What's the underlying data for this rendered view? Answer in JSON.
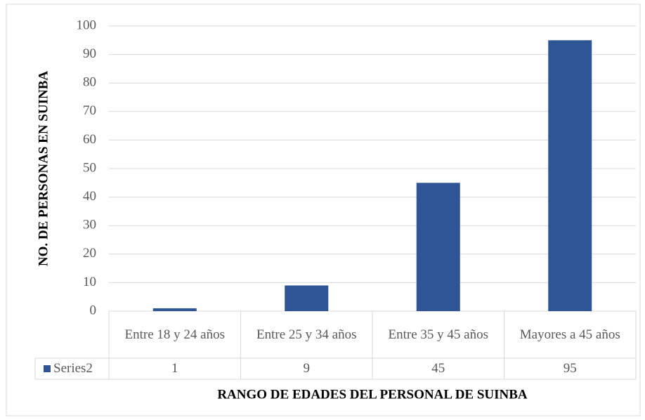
{
  "chart_data": {
    "type": "bar",
    "x_label": "RANGO DE EDADES DEL PERSONAL DE SUINBA",
    "y_label": "NO. DE PERSONAS EN SUINBA",
    "categories": [
      "Entre 18 y 24 años",
      "Entre 25 y 34 años",
      "Entre 35 y 45 años",
      "Mayores a 45 años"
    ],
    "series": [
      {
        "name": "Series2",
        "color": "#2f5597",
        "values": [
          1,
          9,
          45,
          95
        ]
      }
    ],
    "ylim": [
      0,
      100
    ],
    "yticks": [
      0,
      10,
      20,
      30,
      40,
      50,
      60,
      70,
      80,
      90,
      100
    ],
    "grid": true,
    "data_table": true
  }
}
